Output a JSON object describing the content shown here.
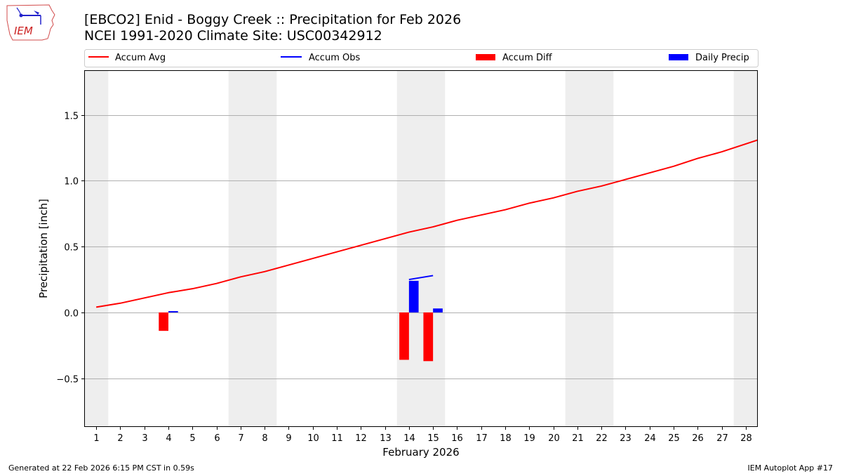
{
  "header": {
    "title_line1": "[EBCO2] Enid - Boggy Creek :: Precipitation for Feb 2026",
    "title_line2": "NCEI 1991-2020 Climate Site: USC00342912",
    "logo_text": "IEM"
  },
  "footer": {
    "left": "Generated at 22 Feb 2026 6:15 PM CST in 0.59s",
    "right": "IEM Autoplot App #17"
  },
  "colors": {
    "accum_avg": "#ff0000",
    "accum_obs": "#0000ff",
    "accum_diff": "#ff0000",
    "daily_precip": "#0000ff",
    "weekend_shade": "#eeeeee",
    "grid": "#b0b0b0"
  },
  "chart_data": {
    "type": "bar",
    "title": "[EBCO2] Enid - Boggy Creek :: Precipitation for Feb 2026",
    "subtitle": "NCEI 1991-2020 Climate Site: USC00342912",
    "xlabel": "February 2026",
    "ylabel": "Precipitation [inch]",
    "xlim": [
      0.5,
      28.5
    ],
    "ylim": [
      -0.87,
      1.84
    ],
    "yticks": [
      -0.5,
      0.0,
      0.5,
      1.0,
      1.5
    ],
    "ytick_labels": [
      "−0.5",
      "0.0",
      "0.5",
      "1.0",
      "1.5"
    ],
    "grid": "y",
    "legend_position": "top, above axes, 4 columns",
    "legend": [
      "Accum Avg",
      "Accum Obs",
      "Accum Diff",
      "Daily Precip"
    ],
    "weekend_days": [
      1,
      7,
      8,
      14,
      15,
      21,
      22,
      28
    ],
    "x": [
      1,
      2,
      3,
      4,
      5,
      6,
      7,
      8,
      9,
      10,
      11,
      12,
      13,
      14,
      15,
      16,
      17,
      18,
      19,
      20,
      21,
      22,
      23,
      24,
      25,
      26,
      27,
      28
    ],
    "series": [
      {
        "name": "Accum Avg",
        "type": "line",
        "x": [
          1,
          2,
          3,
          4,
          5,
          6,
          7,
          8,
          9,
          10,
          11,
          12,
          13,
          14,
          15,
          16,
          17,
          18,
          19,
          20,
          21,
          22,
          23,
          24,
          25,
          26,
          27,
          28,
          28.5
        ],
        "values": [
          0.04,
          0.07,
          0.11,
          0.15,
          0.18,
          0.22,
          0.27,
          0.31,
          0.36,
          0.41,
          0.46,
          0.51,
          0.56,
          0.61,
          0.65,
          0.7,
          0.74,
          0.78,
          0.83,
          0.87,
          0.92,
          0.96,
          1.01,
          1.06,
          1.11,
          1.17,
          1.22,
          1.28,
          1.31
        ]
      },
      {
        "name": "Accum Obs",
        "type": "line",
        "x": [
          14,
          15
        ],
        "values": [
          0.25,
          0.28
        ]
      },
      {
        "name": "Accum Diff",
        "type": "bar",
        "offset": -0.2,
        "x": [
          4,
          14,
          15
        ],
        "values": [
          -0.14,
          -0.36,
          -0.37
        ]
      },
      {
        "name": "Daily Precip",
        "type": "bar",
        "offset": 0.2,
        "x": [
          4,
          14,
          15
        ],
        "values": [
          0.01,
          0.24,
          0.03
        ]
      }
    ]
  }
}
